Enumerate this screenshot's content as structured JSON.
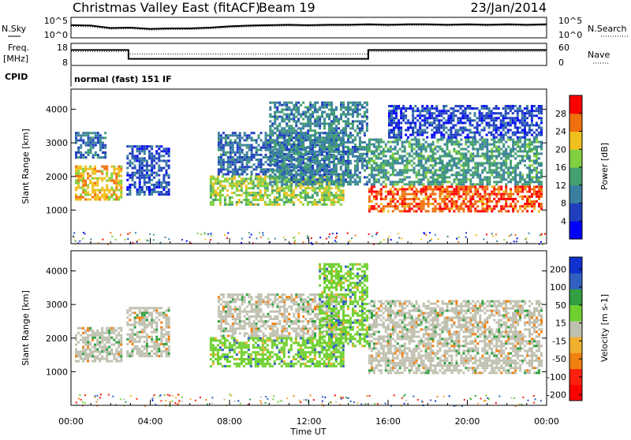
{
  "header": {
    "title": "Christmas Valley East (fitACF)",
    "beam": "Beam 19",
    "date": "23/Jan/2014"
  },
  "panels": {
    "nsky_label": "N.Sky",
    "nsearch_label": "N.Search",
    "freq_label_1": "Freq.",
    "freq_label_2": "[MHz]",
    "nave_label": "Nave",
    "cpid_label": "CPID",
    "cpid_value": "normal (fast) 151 IF"
  },
  "chart_data": [
    {
      "type": "line",
      "name": "noise-panel",
      "left_ticks": [
        "10^5",
        "10^0"
      ],
      "right_ticks": [
        "10^5",
        "10^0"
      ],
      "series": [
        {
          "name": "N.Sky",
          "x": [
            0,
            1,
            2,
            3,
            4,
            5,
            6,
            7,
            8,
            9,
            10,
            11,
            12,
            13,
            14,
            15,
            16,
            17,
            18,
            19,
            20,
            21,
            22,
            23,
            24
          ],
          "y": [
            3.1,
            3.0,
            2.4,
            2.5,
            2.2,
            2.3,
            2.3,
            2.5,
            2.8,
            3.0,
            3.1,
            3.2,
            3.1,
            3.2,
            3.2,
            3.3,
            3.2,
            3.3,
            3.3,
            3.2,
            3.3,
            3.2,
            3.3,
            3.2,
            3.3
          ]
        }
      ],
      "ylim": [
        0,
        5
      ]
    },
    {
      "type": "line",
      "name": "frequency-panel",
      "left_ticks": [
        "18",
        "8"
      ],
      "right_ticks": [
        "60",
        "0"
      ],
      "series": [
        {
          "name": "Freq.",
          "x": [
            0,
            2.9,
            2.9,
            15,
            15,
            24
          ],
          "y": [
            15,
            15,
            11,
            11,
            15,
            15
          ]
        },
        {
          "name": "Nave",
          "x": [
            0,
            2.9,
            2.9,
            15,
            15,
            24
          ],
          "y": [
            38,
            38,
            31,
            31,
            38,
            38
          ]
        }
      ],
      "ylim": [
        8,
        18
      ]
    },
    {
      "type": "heatmap",
      "name": "power-panel",
      "ylabel": "Slant Range [km]",
      "yticks": [
        1000,
        2000,
        3000,
        4000
      ],
      "ylim": [
        0,
        4600
      ],
      "xlim": [
        0,
        24
      ],
      "colorbar_label": "Power [dB]",
      "colorbar_ticks": [
        4,
        8,
        12,
        16,
        20,
        24,
        28
      ],
      "colorbar_range": [
        0,
        32
      ],
      "colors": [
        "#0000ff",
        "#1f3fbf",
        "#3a7fa0",
        "#44a070",
        "#80d040",
        "#f0c020",
        "#f07010",
        "#ff0000"
      ],
      "bands": [
        {
          "t0": 0.2,
          "t1": 2.6,
          "r0": 1350,
          "r1": 2400,
          "level": 22
        },
        {
          "t0": 0.2,
          "t1": 1.8,
          "r0": 2600,
          "r1": 3400,
          "level": 9
        },
        {
          "t0": 2.8,
          "t1": 5.0,
          "r0": 1500,
          "r1": 3000,
          "level": 7
        },
        {
          "t0": 7.0,
          "t1": 13.8,
          "r0": 1200,
          "r1": 2100,
          "level": 18
        },
        {
          "t0": 7.4,
          "t1": 13.8,
          "r0": 2100,
          "r1": 3400,
          "level": 9
        },
        {
          "t0": 10.0,
          "t1": 15.0,
          "r0": 1800,
          "r1": 4300,
          "level": 11
        },
        {
          "t0": 15.0,
          "t1": 23.8,
          "r0": 1000,
          "r1": 1800,
          "level": 27
        },
        {
          "t0": 15.0,
          "t1": 23.8,
          "r0": 1800,
          "r1": 3200,
          "level": 13
        },
        {
          "t0": 16.0,
          "t1": 23.8,
          "r0": 3200,
          "r1": 4200,
          "level": 6
        }
      ]
    },
    {
      "type": "heatmap",
      "name": "velocity-panel",
      "ylabel": "Slant Range [km]",
      "yticks": [
        1000,
        2000,
        3000,
        4000
      ],
      "ylim": [
        0,
        4600
      ],
      "xlim": [
        0,
        24
      ],
      "xlabel": "Time UT",
      "xticks": [
        "00:00",
        "04:00",
        "08:00",
        "12:00",
        "16:00",
        "20:00",
        "00:00"
      ],
      "colorbar_label": "Velocity [m s-1]",
      "colorbar_ticks": [
        200,
        100,
        50,
        15,
        -15,
        -50,
        -100,
        -200
      ],
      "colors": [
        "#1030d0",
        "#3060c0",
        "#30a040",
        "#70d030",
        "#c0c0b0",
        "#f0b030",
        "#f08010",
        "#ff2010",
        "#ff0000"
      ],
      "bands": [
        {
          "t0": 0.2,
          "t1": 2.6,
          "r0": 1350,
          "r1": 2400,
          "level": 4
        },
        {
          "t0": 2.8,
          "t1": 5.0,
          "r0": 1500,
          "r1": 3000,
          "level": 4
        },
        {
          "t0": 7.0,
          "t1": 13.8,
          "r0": 1200,
          "r1": 2100,
          "level": 3
        },
        {
          "t0": 7.4,
          "t1": 13.8,
          "r0": 2100,
          "r1": 3400,
          "level": 4
        },
        {
          "t0": 12.5,
          "t1": 15.0,
          "r0": 1800,
          "r1": 4300,
          "level": 3
        },
        {
          "t0": 15.0,
          "t1": 23.8,
          "r0": 1000,
          "r1": 1800,
          "level": 4
        },
        {
          "t0": 15.0,
          "t1": 23.8,
          "r0": 1800,
          "r1": 3200,
          "level": 4
        }
      ]
    }
  ]
}
